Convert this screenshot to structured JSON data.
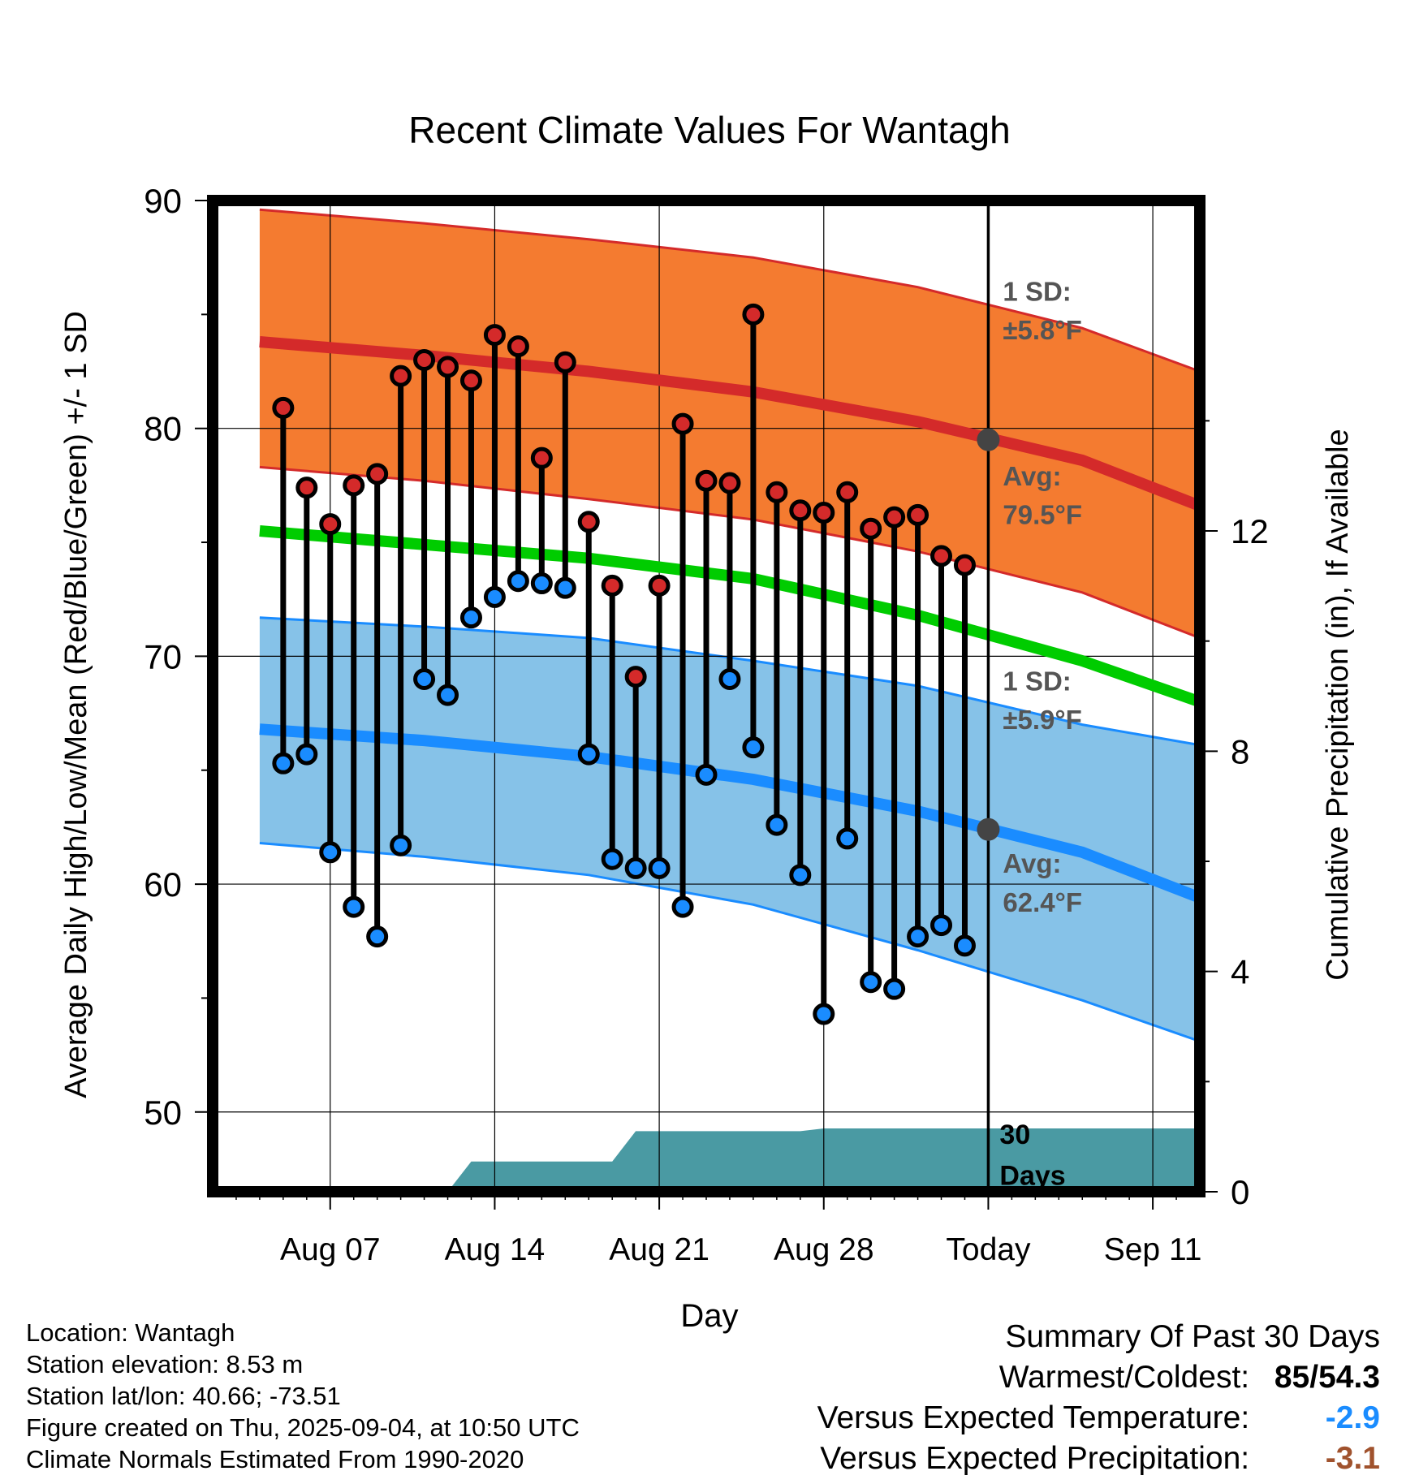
{
  "chart_data": {
    "type": "line",
    "title": "Recent Climate Values For Wantagh",
    "xlabel": "Day",
    "ylabel": "Average Daily High/Low/Mean (Red/Blue/Green) +/- 1 SD",
    "y2label": "Cumulative Precipitation (in), If Available",
    "ylim": [
      46.5,
      90
    ],
    "y2lim": [
      0,
      18
    ],
    "yticks": [
      50,
      60,
      70,
      80,
      90
    ],
    "y2ticks": [
      0,
      4,
      8,
      12
    ],
    "x_tick_labels": [
      "Aug 07",
      "Aug 14",
      "Aug 21",
      "Aug 28",
      "Today",
      "Sep 11"
    ],
    "x_tick_dates": [
      "2025-08-07",
      "2025-08-14",
      "2025-08-21",
      "2025-08-28",
      "2025-09-04",
      "2025-09-11"
    ],
    "xlim": [
      "2025-08-02",
      "2025-09-13"
    ],
    "today": "2025-09-04",
    "grid": true,
    "daily": {
      "dates": [
        "2025-08-05",
        "2025-08-06",
        "2025-08-07",
        "2025-08-08",
        "2025-08-09",
        "2025-08-10",
        "2025-08-11",
        "2025-08-12",
        "2025-08-13",
        "2025-08-14",
        "2025-08-15",
        "2025-08-16",
        "2025-08-17",
        "2025-08-18",
        "2025-08-19",
        "2025-08-20",
        "2025-08-21",
        "2025-08-22",
        "2025-08-23",
        "2025-08-24",
        "2025-08-25",
        "2025-08-26",
        "2025-08-27",
        "2025-08-28",
        "2025-08-29",
        "2025-08-30",
        "2025-08-31",
        "2025-09-01",
        "2025-09-02",
        "2025-09-03"
      ],
      "high": [
        80.9,
        77.4,
        75.8,
        77.5,
        78.0,
        82.3,
        83.0,
        82.7,
        82.1,
        84.1,
        83.6,
        78.7,
        82.9,
        75.9,
        73.1,
        69.1,
        73.1,
        80.2,
        77.7,
        77.6,
        85.0,
        77.2,
        76.4,
        76.3,
        77.2,
        75.6,
        76.1,
        76.2,
        74.4,
        74.0
      ],
      "low": [
        65.3,
        65.7,
        61.4,
        59.0,
        57.7,
        61.7,
        69.0,
        68.3,
        71.7,
        72.6,
        73.3,
        73.2,
        73.0,
        65.7,
        61.1,
        60.7,
        60.7,
        59.0,
        64.8,
        69.0,
        66.0,
        62.6,
        60.4,
        54.3,
        62.0,
        55.7,
        55.4,
        57.7,
        58.2,
        57.3
      ]
    },
    "normals_dates": [
      "2025-08-04",
      "2025-08-11",
      "2025-08-18",
      "2025-08-25",
      "2025-09-01",
      "2025-09-08",
      "2025-09-13"
    ],
    "normal_high_upper": [
      89.6,
      89.0,
      88.3,
      87.5,
      86.2,
      84.4,
      82.5
    ],
    "normal_high": [
      83.8,
      83.2,
      82.5,
      81.6,
      80.3,
      78.6,
      76.6
    ],
    "normal_high_lower": [
      78.3,
      77.7,
      76.9,
      76.0,
      74.6,
      72.8,
      70.8
    ],
    "normal_mean": [
      75.5,
      74.9,
      74.3,
      73.4,
      71.8,
      69.8,
      68.0
    ],
    "normal_low_upper": [
      71.7,
      71.3,
      70.8,
      69.8,
      68.7,
      67.0,
      66.1
    ],
    "normal_low": [
      66.8,
      66.3,
      65.6,
      64.6,
      63.2,
      61.4,
      59.4
    ],
    "normal_low_lower": [
      61.8,
      61.2,
      60.4,
      59.1,
      57.1,
      54.9,
      53.1
    ],
    "precip_cumulative": {
      "dates": [
        "2025-08-12",
        "2025-08-13",
        "2025-08-19",
        "2025-08-20",
        "2025-08-27",
        "2025-08-28",
        "2025-09-13"
      ],
      "values": [
        0.0,
        0.55,
        0.55,
        1.1,
        1.1,
        1.15,
        1.15
      ]
    },
    "annotations": {
      "high_sd_label": "1 SD:",
      "high_sd_value": "±5.8°F",
      "high_avg_label": "Avg:",
      "high_avg_value": "79.5°F",
      "high_avg_today": 79.5,
      "low_sd_label": "1 SD:",
      "low_sd_value": "±5.9°F",
      "low_avg_label": "Avg:",
      "low_avg_value": "62.4°F",
      "low_avg_today": 62.4,
      "days_label_1": "30",
      "days_label_2": "Days"
    },
    "colors": {
      "high_band": "#f47b30",
      "high_line": "#d42a2a",
      "low_band": "#86c2e8",
      "low_line": "#1a8cff",
      "mean_line": "#00cc00",
      "precip": "#4a9aa3",
      "high_marker": "#d42a2a",
      "low_marker": "#1a8cff",
      "annotation_text": "#555555"
    }
  },
  "footer": {
    "location": "Location: Wantagh",
    "elevation": "Station elevation: 8.53 m",
    "latlon": "Station lat/lon: 40.66; -73.51",
    "created": "Figure created on Thu, 2025-09-04, at 10:50 UTC",
    "normals": "Climate Normals Estimated From 1990-2020"
  },
  "summary": {
    "title": "Summary Of Past 30 Days",
    "warm_cold_label": "Warmest/Coldest:",
    "warm_value": "85",
    "slash": "/",
    "cold_value": "54.3",
    "temp_label": "Versus Expected Temperature:",
    "temp_value": "-2.9",
    "temp_color": "#1a8cff",
    "precip_label": "Versus Expected Precipitation:",
    "precip_value": "-3.1",
    "precip_color": "#a0522d"
  }
}
